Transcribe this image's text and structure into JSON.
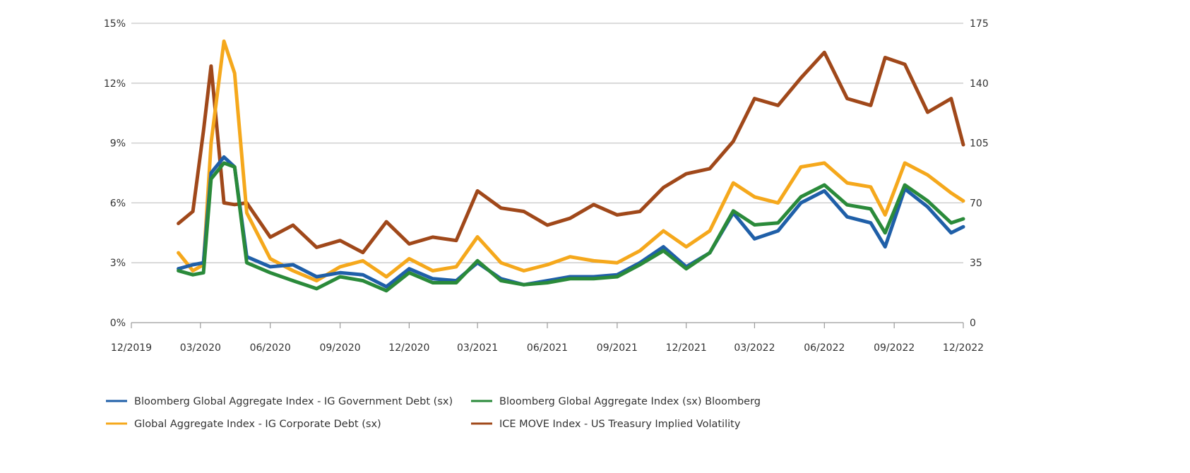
{
  "chart_data": {
    "type": "line",
    "title": "",
    "left_axis": {
      "ylim": [
        0,
        15
      ],
      "ticks": [
        "0%",
        "3%",
        "6%",
        "9%",
        "12%",
        "15%"
      ],
      "tick_values": [
        0,
        3,
        6,
        9,
        12,
        15
      ]
    },
    "right_axis": {
      "ylim": [
        0,
        175
      ],
      "ticks": [
        "0",
        "35",
        "70",
        "105",
        "140",
        "175"
      ],
      "tick_values": [
        0,
        35,
        70,
        105,
        140,
        175
      ]
    },
    "x_axis": {
      "range": [
        "2019-12-01",
        "2022-12-01"
      ],
      "ticks": [
        "12/2019",
        "03/2020",
        "06/2020",
        "09/2020",
        "12/2020",
        "03/2021",
        "06/2021",
        "09/2021",
        "12/2021",
        "03/2022",
        "06/2022",
        "09/2022",
        "12/2022"
      ],
      "tick_dates": [
        "2019-12-01",
        "2020-03-01",
        "2020-06-01",
        "2020-09-01",
        "2020-12-01",
        "2021-03-01",
        "2021-06-01",
        "2021-09-01",
        "2021-12-01",
        "2022-03-01",
        "2022-06-01",
        "2022-09-01",
        "2022-12-01"
      ]
    },
    "grid": "horizontal",
    "legend_position": "bottom",
    "x": [
      "2020-02-01",
      "2020-02-20",
      "2020-03-05",
      "2020-03-15",
      "2020-04-01",
      "2020-04-15",
      "2020-05-01",
      "2020-06-01",
      "2020-07-01",
      "2020-08-01",
      "2020-09-01",
      "2020-10-01",
      "2020-11-01",
      "2020-12-01",
      "2021-01-01",
      "2021-02-01",
      "2021-03-01",
      "2021-04-01",
      "2021-05-01",
      "2021-06-01",
      "2021-07-01",
      "2021-08-01",
      "2021-09-01",
      "2021-10-01",
      "2021-11-01",
      "2021-12-01",
      "2022-01-01",
      "2022-02-01",
      "2022-03-01",
      "2022-04-01",
      "2022-05-01",
      "2022-06-01",
      "2022-07-01",
      "2022-08-01",
      "2022-08-20",
      "2022-09-15",
      "2022-10-15",
      "2022-11-15",
      "2022-12-01"
    ],
    "series": [
      {
        "name": "Bloomberg Global Aggregate Index - IG Government Debt (sx)",
        "axis": "left",
        "color": "#1f5fa8",
        "values": [
          2.7,
          2.9,
          3.0,
          7.5,
          8.3,
          7.8,
          3.3,
          2.8,
          2.9,
          2.3,
          2.5,
          2.4,
          1.8,
          2.7,
          2.2,
          2.1,
          3.0,
          2.2,
          1.9,
          2.1,
          2.3,
          2.3,
          2.4,
          3.0,
          3.8,
          2.8,
          3.5,
          5.5,
          4.2,
          4.6,
          6.0,
          6.6,
          5.3,
          5.0,
          3.8,
          6.7,
          5.8,
          4.5,
          4.8
        ]
      },
      {
        "name": "Bloomberg Global Aggregate Index (sx) Bloomberg",
        "axis": "left",
        "color": "#2a8a3a",
        "values": [
          2.6,
          2.4,
          2.5,
          7.2,
          8.0,
          7.8,
          3.0,
          2.5,
          2.1,
          1.7,
          2.3,
          2.1,
          1.6,
          2.5,
          2.0,
          2.0,
          3.1,
          2.1,
          1.9,
          2.0,
          2.2,
          2.2,
          2.3,
          2.9,
          3.6,
          2.7,
          3.5,
          5.6,
          4.9,
          5.0,
          6.3,
          6.9,
          5.9,
          5.7,
          4.5,
          6.9,
          6.1,
          5.0,
          5.2
        ]
      },
      {
        "name": "Global Aggregate Index - IG Corporate Debt (sx)",
        "axis": "left",
        "color": "#f5a81c",
        "values": [
          3.5,
          2.6,
          2.9,
          9.0,
          14.1,
          12.5,
          5.5,
          3.2,
          2.6,
          2.1,
          2.8,
          3.1,
          2.3,
          3.2,
          2.6,
          2.8,
          4.3,
          3.0,
          2.6,
          2.9,
          3.3,
          3.1,
          3.0,
          3.6,
          4.6,
          3.8,
          4.6,
          7.0,
          6.3,
          6.0,
          7.8,
          8.0,
          7.0,
          6.8,
          5.4,
          8.0,
          7.4,
          6.5,
          6.1
        ]
      },
      {
        "name": "ICE MOVE Index - US Treasury Implied Volatility",
        "axis": "right",
        "color": "#a0481a",
        "values": [
          58,
          65,
          112,
          150,
          70,
          69,
          70,
          50,
          57,
          44,
          48,
          41,
          59,
          46,
          50,
          48,
          77,
          67,
          65,
          57,
          61,
          69,
          63,
          65,
          79,
          87,
          90,
          106,
          131,
          127,
          143,
          158,
          131,
          127,
          155,
          151,
          123,
          131,
          104
        ]
      }
    ]
  }
}
